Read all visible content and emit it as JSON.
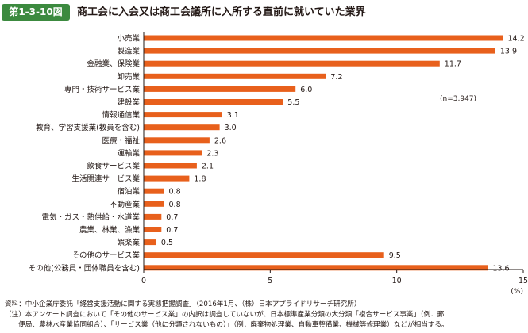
{
  "header": {
    "figure_number": "第1-3-10図",
    "title": "商工会に入会又は商工会議所に入所する直前に就いていた業界"
  },
  "notes": {
    "source": "資料：中小企業庁委託「経営支援活動に関する実態把握調査」（2016年1月、（株）日本アプライドリサーチ研究所）",
    "note_line1": "（注）本アンケート調査において「その他のサービス業」の内訳は調査していないが、日本標準産業分類の大分類「複合サービス事業」（例．郵",
    "note_line2": "　　便局、農林水産業協同組合）、「サービス業（他に分類されないもの）」（例．廃棄物処理業、自動車整備業、機械等修理業）などが相当する。"
  },
  "colors": {
    "badge": "#3c8a3f",
    "bar": "#e8601c",
    "axis": "#231815"
  },
  "chart_data": {
    "type": "bar",
    "orientation": "horizontal",
    "categories": [
      "小売業",
      "製造業",
      "金融業、保険業",
      "卸売業",
      "専門・技術サービス業",
      "建設業",
      "情報通信業",
      "教育、学習支援業(教員を含む)",
      "医療・福祉",
      "運輸業",
      "飲食サービス業",
      "生活関連サービス業",
      "宿泊業",
      "不動産業",
      "電気・ガス・熱供給・水道業",
      "農業、林業、漁業",
      "娯楽業",
      "その他のサービス業",
      "その他(公務員・団体職員を含む)"
    ],
    "values": [
      14.2,
      13.9,
      11.7,
      7.2,
      6.0,
      5.5,
      3.1,
      3.0,
      2.6,
      2.3,
      2.1,
      1.8,
      0.8,
      0.8,
      0.7,
      0.7,
      0.5,
      9.5,
      13.6
    ],
    "value_labels": [
      "14.2",
      "13.9",
      "11.7",
      "7.2",
      "6.0",
      "5.5",
      "3.1",
      "3.0",
      "2.6",
      "2.3",
      "2.1",
      "1.8",
      "0.8",
      "0.8",
      "0.7",
      "0.7",
      "0.5",
      "9.5",
      "13.6"
    ],
    "xlim": [
      0,
      15
    ],
    "xticks": [
      0,
      5,
      10,
      15
    ],
    "xtick_labels": [
      "0",
      "5",
      "10",
      "15"
    ],
    "unit_label": "(%)",
    "sample_note": "(n=3,947)",
    "grid": false
  }
}
